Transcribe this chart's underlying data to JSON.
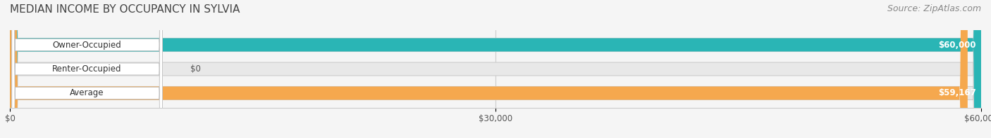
{
  "title": "MEDIAN INCOME BY OCCUPANCY IN SYLVIA",
  "source": "Source: ZipAtlas.com",
  "categories": [
    "Owner-Occupied",
    "Renter-Occupied",
    "Average"
  ],
  "values": [
    60000,
    0,
    59167
  ],
  "bar_colors": [
    "#2ab5b5",
    "#c9a8d4",
    "#f5a84e"
  ],
  "bar_labels": [
    "$60,000",
    "$0",
    "$59,167"
  ],
  "xlim": [
    0,
    60000
  ],
  "xticks": [
    0,
    30000,
    60000
  ],
  "xtick_labels": [
    "$0",
    "$30,000",
    "$60,000"
  ],
  "figsize": [
    14.06,
    1.97
  ],
  "dpi": 100,
  "bg_color": "#f5f5f5",
  "bar_bg_color": "#e8e8e8",
  "label_bg_color": "#ffffff",
  "title_fontsize": 11,
  "source_fontsize": 9,
  "bar_height": 0.55,
  "bar_label_fontsize": 8.5,
  "axis_label_fontsize": 8.5
}
